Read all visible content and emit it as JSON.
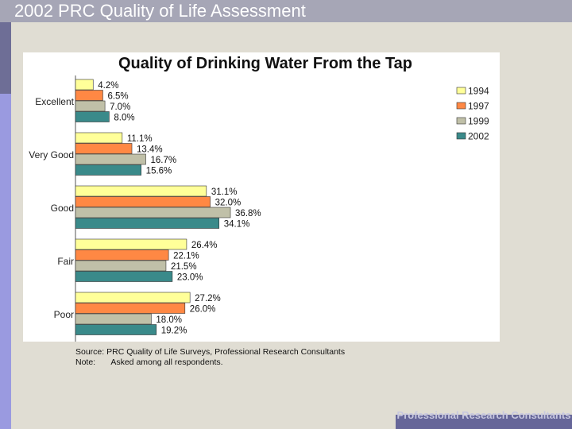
{
  "slide": {
    "title": "2002 PRC Quality of Life Assessment",
    "footer": "Professional Research Consultants"
  },
  "colors": {
    "1994": "#ffff99",
    "1997": "#ff8844",
    "1999": "#c0c0a8",
    "2002": "#3a8a8a"
  },
  "chart_data": {
    "type": "bar",
    "orientation": "horizontal",
    "title": "Quality of Drinking Water From the Tap",
    "categories": [
      "Excellent",
      "Very Good",
      "Good",
      "Fair",
      "Poor"
    ],
    "series": [
      {
        "name": "1994",
        "values": [
          4.2,
          11.1,
          31.1,
          26.4,
          27.2
        ],
        "labels": [
          "4.2%",
          "11.1%",
          "31.1%",
          "26.4%",
          "27.2%"
        ]
      },
      {
        "name": "1997",
        "values": [
          6.5,
          13.4,
          32.0,
          22.1,
          26.0
        ],
        "labels": [
          "6.5%",
          "13.4%",
          "32.0%",
          "22.1%",
          "26.0%"
        ]
      },
      {
        "name": "1999",
        "values": [
          7.0,
          16.7,
          36.8,
          21.5,
          18.0
        ],
        "labels": [
          "7.0%",
          "16.7%",
          "36.8%",
          "21.5%",
          "18.0%"
        ]
      },
      {
        "name": "2002",
        "values": [
          8.0,
          15.6,
          34.1,
          23.0,
          19.2
        ],
        "labels": [
          "8.0%",
          "15.6%",
          "34.1%",
          "23.0%",
          "19.2%"
        ]
      }
    ],
    "xlim": [
      0,
      100
    ],
    "legend": "top-right",
    "source_label": "Source:",
    "source": "PRC Quality of Life Surveys, Professional Research Consultants",
    "note_label": "Note:",
    "note": "Asked among all respondents."
  }
}
